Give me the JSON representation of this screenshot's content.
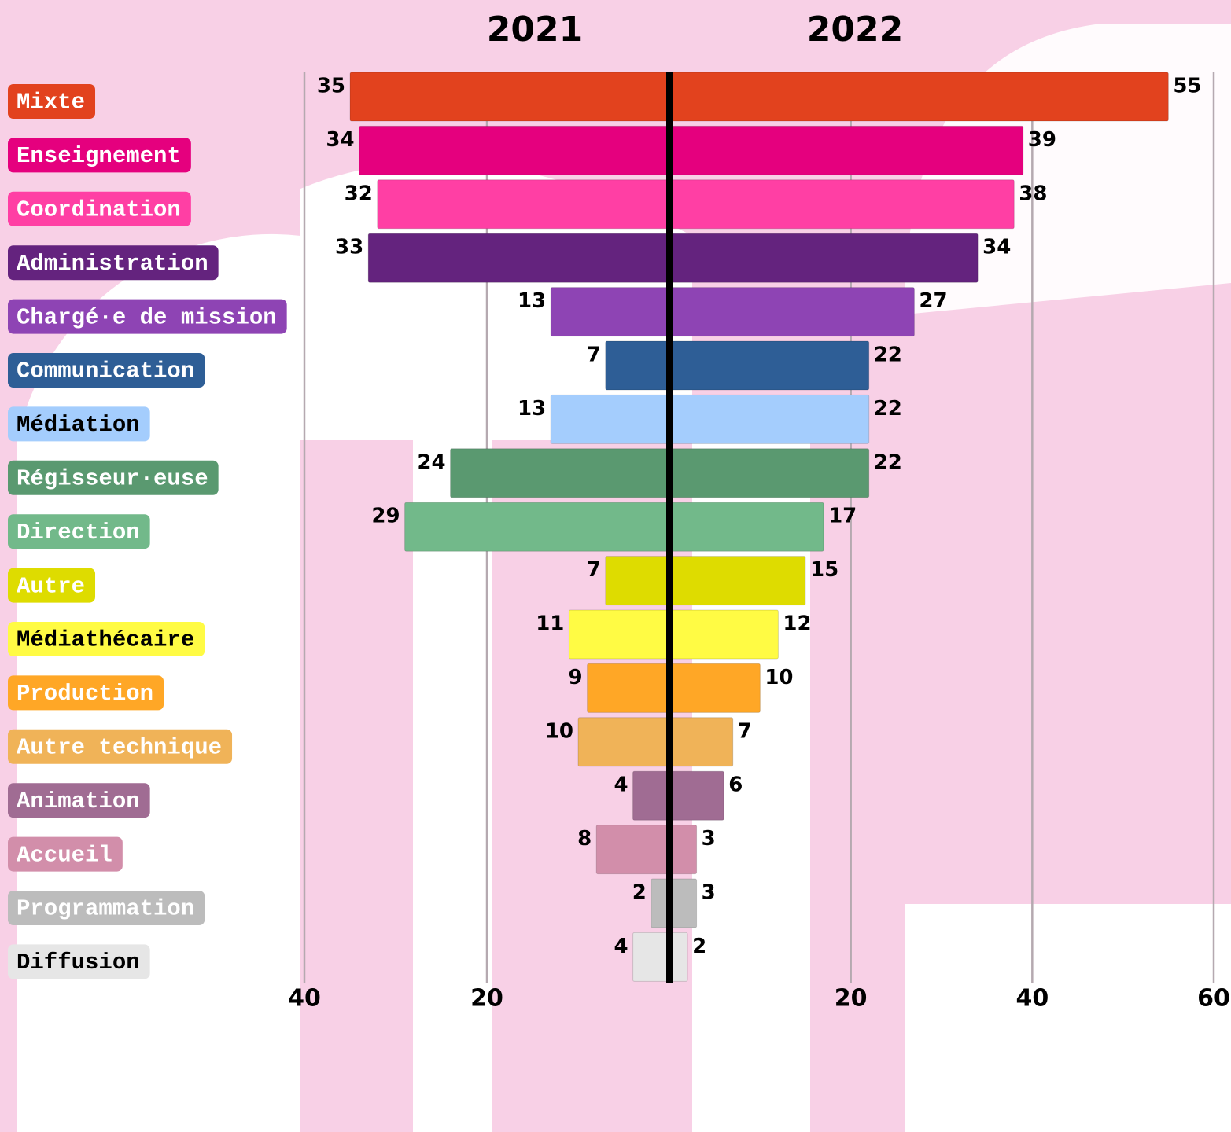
{
  "chart_data": {
    "type": "butterfly",
    "categories": [
      "Mixte",
      "Enseignement",
      "Coordination",
      "Administration",
      "Chargé·e de mission",
      "Communication",
      "Médiation",
      "Régisseur·euse",
      "Direction",
      "Autre",
      "Médiathécaire",
      "Production",
      "Autre technique",
      "Animation",
      "Accueil",
      "Programmation",
      "Diffusion"
    ],
    "colors": [
      "#e2421e",
      "#e5007e",
      "#ff3fa4",
      "#64237e",
      "#8e44b4",
      "#2e5e96",
      "#a4cdfd",
      "#5a9970",
      "#72b98a",
      "#dedc00",
      "#fffb44",
      "#ffa726",
      "#f0b358",
      "#a06c93",
      "#d28eaa",
      "#bcbcbc",
      "#e6e6e6"
    ],
    "label_text_colors": [
      "#ffffff",
      "#ffffff",
      "#ffffff",
      "#ffffff",
      "#ffffff",
      "#ffffff",
      "#000000",
      "#ffffff",
      "#ffffff",
      "#ffffff",
      "#000000",
      "#ffffff",
      "#ffffff",
      "#ffffff",
      "#ffffff",
      "#ffffff",
      "#000000"
    ],
    "series": [
      {
        "name": "2021",
        "values": [
          35,
          34,
          32,
          33,
          13,
          7,
          13,
          24,
          29,
          7,
          11,
          9,
          10,
          4,
          8,
          2,
          4
        ]
      },
      {
        "name": "2022",
        "values": [
          55,
          39,
          38,
          34,
          27,
          22,
          22,
          22,
          17,
          15,
          12,
          10,
          7,
          6,
          3,
          3,
          2
        ]
      }
    ],
    "xlim_left": [
      0,
      40
    ],
    "xticks_left": [
      40,
      20
    ],
    "xlim": [
      0,
      60
    ],
    "xticks": [
      20,
      40,
      60
    ],
    "grid": true
  }
}
